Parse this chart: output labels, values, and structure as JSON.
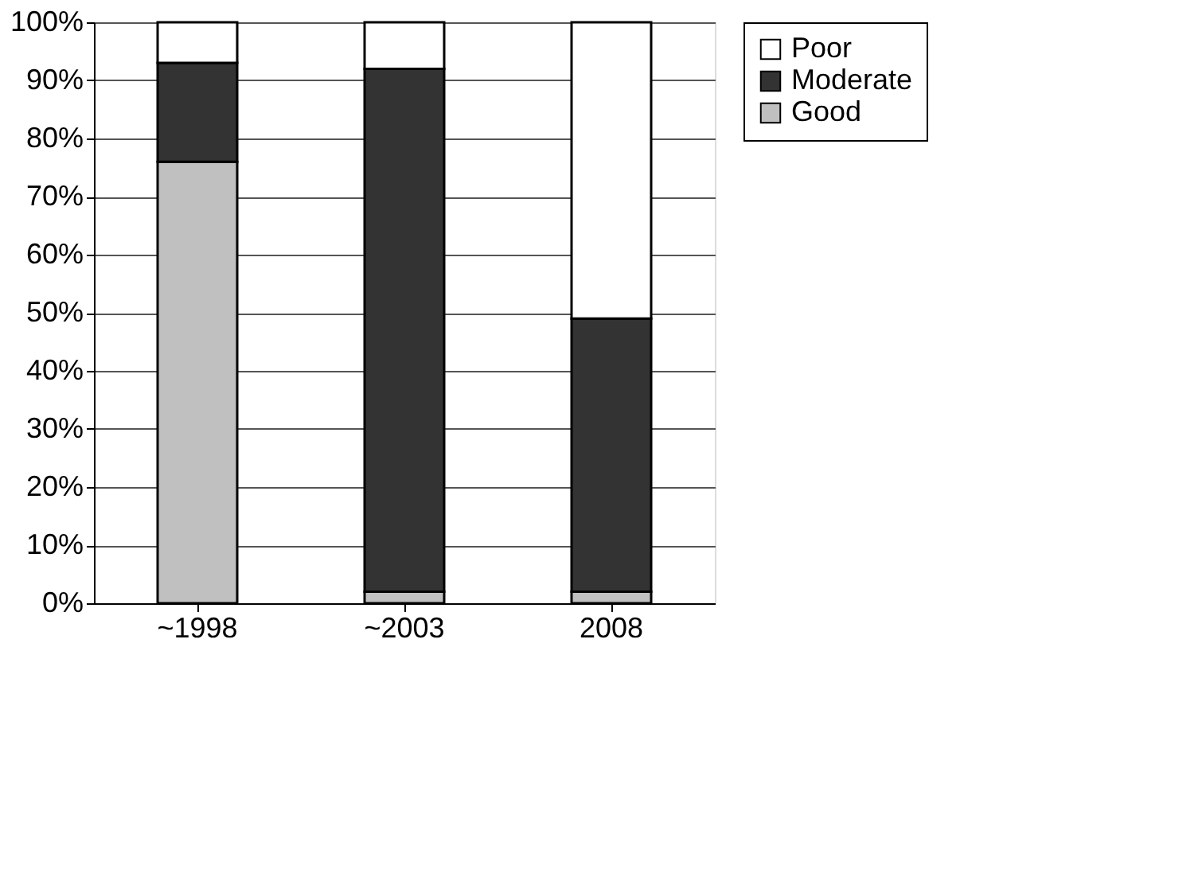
{
  "chart_data": {
    "type": "bar",
    "stacked": true,
    "categories": [
      "~1998",
      "~2003",
      "2008"
    ],
    "series": [
      {
        "name": "Good",
        "color": "#c0c0c0",
        "values": [
          76,
          2,
          2
        ]
      },
      {
        "name": "Moderate",
        "color": "#333333",
        "values": [
          17,
          90,
          47
        ]
      },
      {
        "name": "Poor",
        "color": "#ffffff",
        "values": [
          7,
          8,
          51
        ]
      }
    ],
    "ylim": [
      0,
      100
    ],
    "yticks": [
      {
        "value": 0,
        "label": "0%"
      },
      {
        "value": 10,
        "label": "10%"
      },
      {
        "value": 20,
        "label": "20%"
      },
      {
        "value": 30,
        "label": "30%"
      },
      {
        "value": 40,
        "label": "40%"
      },
      {
        "value": 50,
        "label": "50%"
      },
      {
        "value": 60,
        "label": "60%"
      },
      {
        "value": 70,
        "label": "70%"
      },
      {
        "value": 80,
        "label": "80%"
      },
      {
        "value": 90,
        "label": "90%"
      },
      {
        "value": 100,
        "label": "100%"
      }
    ],
    "grid": "y",
    "legend": "right"
  }
}
